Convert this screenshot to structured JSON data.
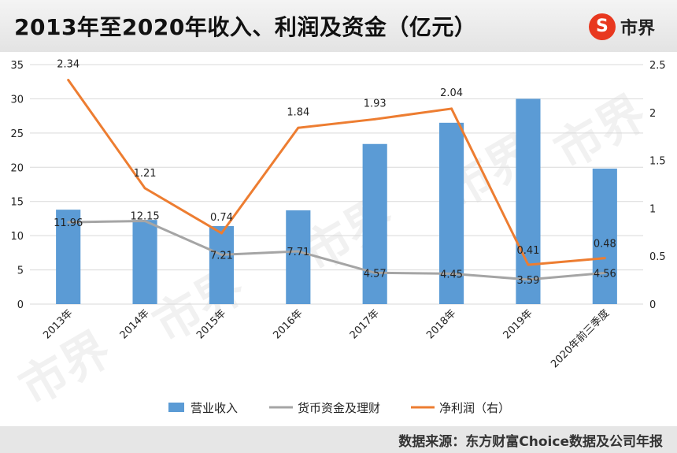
{
  "header": {
    "title": "2013年至2020年收入、利润及资金（亿元）",
    "logo_text": "市界",
    "logo_glyph": "S"
  },
  "footer": {
    "source": "数据来源：东方财富Choice数据及公司年报"
  },
  "watermark": "市界",
  "colors": {
    "revenue": "#5b9bd5",
    "funds": "#a5a5a5",
    "profit": "#ed7d31",
    "brand": "#e8381f"
  },
  "chart_data": {
    "type": "bar",
    "categories": [
      "2013年",
      "2014年",
      "2015年",
      "2016年",
      "2017年",
      "2018年",
      "2019年",
      "2020年前三季度"
    ],
    "series": [
      {
        "name": "营业收入",
        "type": "bar",
        "axis": "left",
        "values": [
          13.8,
          12.3,
          11.4,
          13.7,
          23.4,
          26.5,
          30.0,
          19.8
        ]
      },
      {
        "name": "货币资金及理财",
        "type": "line",
        "axis": "left",
        "values": [
          11.96,
          12.15,
          7.21,
          7.71,
          4.57,
          4.45,
          3.59,
          4.56
        ],
        "labels": [
          "11.96",
          "12.15",
          "7.21",
          "7.71",
          "4.57",
          "4.45",
          "3.59",
          "4.56"
        ]
      },
      {
        "name": "净利润（右）",
        "type": "line",
        "axis": "right",
        "values": [
          2.34,
          1.21,
          0.74,
          1.84,
          1.93,
          2.04,
          0.41,
          0.48
        ],
        "labels": [
          "2.34",
          "1.21",
          "0.74",
          "1.84",
          "1.93",
          "2.04",
          "0.41",
          "0.48"
        ]
      }
    ],
    "yleft": {
      "min": 0,
      "max": 35,
      "ticks": [
        "0",
        "5",
        "10",
        "15",
        "20",
        "25",
        "30",
        "35"
      ]
    },
    "yright": {
      "min": 0,
      "max": 2.5,
      "ticks": [
        "0",
        "0.5",
        "1",
        "1.5",
        "2",
        "2.5"
      ]
    },
    "grid": true,
    "legend": "bottom"
  }
}
